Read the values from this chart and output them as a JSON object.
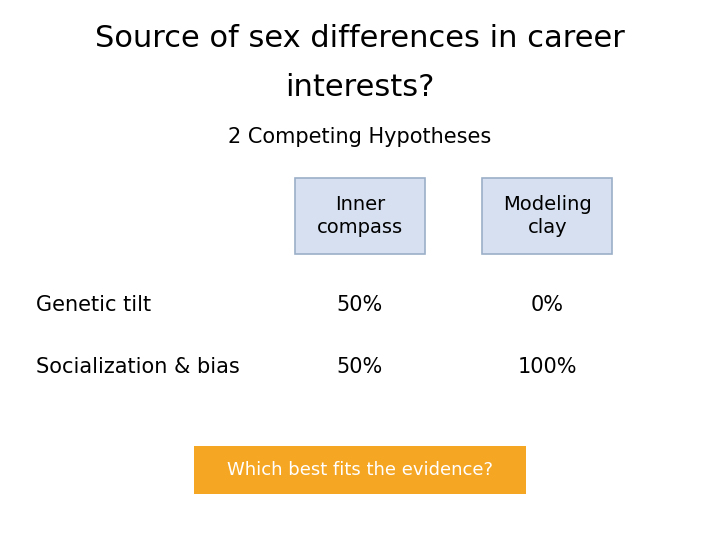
{
  "title_line1": "Source of sex differences in career",
  "title_line2": "interests?",
  "subtitle": "2 Competing Hypotheses",
  "col1_header": "Inner\ncompass",
  "col2_header": "Modeling\nclay",
  "row1_label": "Genetic tilt",
  "row2_label": "Socialization & bias",
  "row1_col1": "50%",
  "row1_col2": "0%",
  "row2_col1": "50%",
  "row2_col2": "100%",
  "button_text": "Which best fits the evidence?",
  "header_bg": "#d6e0f0",
  "button_bg": "#f5a623",
  "button_text_color": "#ffffff",
  "background_color": "#ffffff",
  "title_fontsize": 22,
  "subtitle_fontsize": 15,
  "header_fontsize": 14,
  "body_fontsize": 15,
  "button_fontsize": 13
}
